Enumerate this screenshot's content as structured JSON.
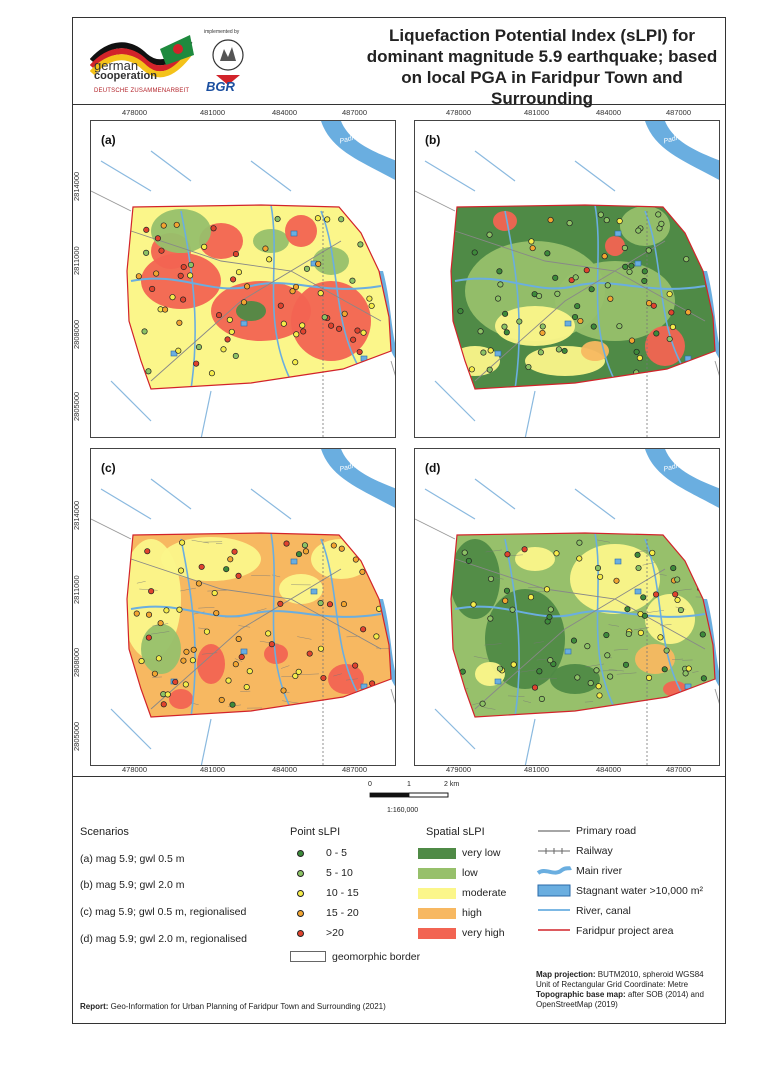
{
  "header": {
    "title": "Liquefaction Potential Index (sLPI) for dominant magnitude 5.9 earthquake; based on local PGA in Faridpur Town and Surrounding",
    "logo_german_line1": "german",
    "logo_german_line2": "cooperation",
    "logo_german_sub": "DEUTSCHE ZUSAMMENARBEIT",
    "logo_implemented": "implemented by",
    "logo_bgr": "BGR"
  },
  "panels": [
    {
      "label": "(a)",
      "river_label": "Padma River"
    },
    {
      "label": "(b)",
      "river_label": "Padma River"
    },
    {
      "label": "(c)",
      "river_label": "Padma River"
    },
    {
      "label": "(d)",
      "river_label": "Padma River"
    }
  ],
  "ticks": {
    "x_top_left": [
      "478000",
      "481000",
      "484000",
      "487000"
    ],
    "x_top_right": [
      "478000",
      "481000",
      "484000",
      "487000"
    ],
    "x_bottom_left": [
      "478000",
      "481000",
      "484000",
      "487000"
    ],
    "x_bottom_right": [
      "479000",
      "481000",
      "484000",
      "487000"
    ],
    "y_top": [
      "2814000",
      "2811000",
      "2808000",
      "2805000"
    ],
    "y_bottom": [
      "2814000",
      "2811000",
      "2808000",
      "2805000"
    ]
  },
  "scale": {
    "zero": "0",
    "one": "1",
    "two": "2 km",
    "ratio": "1:160,000"
  },
  "legend": {
    "scenarios_title": "Scenarios",
    "scenarios": [
      "(a) mag 5.9; gwl 0.5 m",
      "(b) mag 5.9; gwl 2.0 m",
      "(c) mag 5.9; gwl 0.5 m, regionalised",
      "(d) mag 5.9; gwl 2.0 m, regionalised"
    ],
    "point_title": "Point sLPI",
    "point_classes": [
      {
        "label": "0 - 5",
        "color": "#3d8a3a"
      },
      {
        "label": "5 - 10",
        "color": "#8cc265"
      },
      {
        "label": "10 - 15",
        "color": "#f5ec4a"
      },
      {
        "label": "15 - 20",
        "color": "#f2a531"
      },
      {
        "label": ">20",
        "color": "#e0432e"
      }
    ],
    "spatial_title": "Spatial sLPI",
    "spatial_classes": [
      {
        "label": "very low",
        "color": "#4f8a46"
      },
      {
        "label": "low",
        "color": "#97c06b"
      },
      {
        "label": "moderate",
        "color": "#fbf68a"
      },
      {
        "label": "high",
        "color": "#f7b861"
      },
      {
        "label": "very high",
        "color": "#f26452"
      }
    ],
    "geomorphic": "geomorphic border",
    "lines": [
      {
        "label": "Primary road"
      },
      {
        "label": "Railway"
      },
      {
        "label": "Main river"
      },
      {
        "label": "Stagnant water >10,000 m²"
      },
      {
        "label": "River, canal"
      },
      {
        "label": "Faridpur project area"
      }
    ]
  },
  "footer": {
    "proj_label": "Map projection:",
    "proj_value": " BUTM2010, spheroid WGS84",
    "unit": "Unit of Rectangular Grid Coordinate: Metre",
    "topo_label": "Topographic base map:",
    "topo_value": " after SOB (2014) and",
    "topo_value2": "OpenStreetMap (2019)",
    "report_label": "Report:",
    "report_value": " Geo-Information for Urban Planning of Faridpur Town and Surrounding (2021)"
  }
}
